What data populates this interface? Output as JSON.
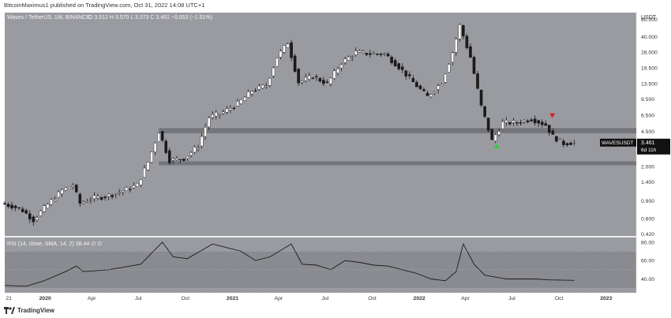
{
  "publisher_line": "BitcoinMaximus1 published on TradingView.com, Oct 31, 2022 14:08 UTC+1",
  "legend": {
    "symbol": "Waves / TetherUS, 1W, BINANCE",
    "ohlc": "O 3.512  H 3.570  L 3.373  C 3.461  −0.053 (−1.51%)"
  },
  "currency_label": "USDT",
  "price_axis": {
    "ticks": [
      "60.000",
      "40.000",
      "28.000",
      "19.500",
      "13.500",
      "9.500",
      "6.500",
      "4.500",
      "3.000",
      "2.000",
      "1.400",
      "0.900",
      "0.600",
      "0.420"
    ]
  },
  "rsi_axis": {
    "ticks": [
      "80.00",
      "60.00",
      "40.00"
    ]
  },
  "rsi_label": "RSI (14, close, SMA, 14, 2)  38.44  ∅  ∅",
  "last_price_tag": {
    "symbol": "WAVESUSDT",
    "price": "3.461",
    "countdown": "6d 11h"
  },
  "time_axis": {
    "ticks": [
      "21",
      "2020",
      "Apr",
      "Jul",
      "Oct",
      "2021",
      "Apr",
      "Jul",
      "Oct",
      "2022",
      "Apr",
      "Jul",
      "Oct",
      "2023"
    ]
  },
  "footer_brand": "TradingView",
  "colors": {
    "chart_bg": "#9a9ba0",
    "rsi_bg": "#9a9ba0",
    "support_zone": "#6f7075",
    "bull_candle": "#ffffff",
    "bear_candle": "#1a1a1a",
    "green_arrow": "#2ecc40",
    "red_arrow": "#d62020",
    "rsi_line": "#1a1a1a"
  },
  "chart_data": {
    "type": "candlestick",
    "title": "Waves / TetherUS, 1W, BINANCE",
    "scale": "log",
    "ylim": [
      0.4,
      70
    ],
    "x_range": [
      "2019-10-14",
      "2023-03-01"
    ],
    "support_zones": [
      [
        4.3,
        4.85
      ],
      [
        2.05,
        2.25
      ]
    ],
    "signals": [
      {
        "date": "2022-06-01",
        "type": "bullish",
        "price": 3.45
      },
      {
        "date": "2022-09-18",
        "type": "bearish",
        "price": 6.0
      }
    ],
    "price_path": [
      [
        "2019-10-14",
        0.85
      ],
      [
        "2019-11-04",
        0.8
      ],
      [
        "2019-11-25",
        0.72
      ],
      [
        "2019-12-16",
        0.58
      ],
      [
        "2019-12-30",
        0.7
      ],
      [
        "2020-01-20",
        0.9
      ],
      [
        "2020-02-10",
        1.15
      ],
      [
        "2020-03-02",
        1.3
      ],
      [
        "2020-03-16",
        0.85
      ],
      [
        "2020-04-06",
        0.95
      ],
      [
        "2020-05-04",
        1.0
      ],
      [
        "2020-06-01",
        1.1
      ],
      [
        "2020-07-06",
        1.3
      ],
      [
        "2020-07-27",
        2.2
      ],
      [
        "2020-08-17",
        4.5
      ],
      [
        "2020-09-07",
        2.3
      ],
      [
        "2020-10-05",
        2.4
      ],
      [
        "2020-11-02",
        3.2
      ],
      [
        "2020-11-23",
        6.2
      ],
      [
        "2020-12-21",
        7.0
      ],
      [
        "2021-01-18",
        8.5
      ],
      [
        "2021-02-15",
        11.5
      ],
      [
        "2021-03-15",
        13.0
      ],
      [
        "2021-04-05",
        25.0
      ],
      [
        "2021-04-26",
        35.0
      ],
      [
        "2021-05-17",
        14.0
      ],
      [
        "2021-06-14",
        16.0
      ],
      [
        "2021-07-12",
        13.5
      ],
      [
        "2021-08-09",
        22.0
      ],
      [
        "2021-09-06",
        28.0
      ],
      [
        "2021-10-04",
        27.0
      ],
      [
        "2021-11-01",
        27.0
      ],
      [
        "2021-11-29",
        20.0
      ],
      [
        "2021-12-27",
        14.0
      ],
      [
        "2022-01-24",
        10.0
      ],
      [
        "2022-02-21",
        14.0
      ],
      [
        "2022-03-14",
        28.0
      ],
      [
        "2022-03-28",
        52.0
      ],
      [
        "2022-04-18",
        25.0
      ],
      [
        "2022-05-09",
        8.0
      ],
      [
        "2022-05-30",
        3.6
      ],
      [
        "2022-06-20",
        5.5
      ],
      [
        "2022-07-18",
        5.5
      ],
      [
        "2022-08-15",
        6.0
      ],
      [
        "2022-09-12",
        5.2
      ],
      [
        "2022-09-26",
        4.0
      ],
      [
        "2022-10-17",
        3.4
      ],
      [
        "2022-10-31",
        3.46
      ]
    ],
    "rsi": {
      "label": "RSI (14, close, SMA, 14, 2)",
      "last": 38.44,
      "ylim": [
        25,
        85
      ],
      "band": [
        30,
        70
      ],
      "path": [
        [
          "2019-10-14",
          33
        ],
        [
          "2019-11-25",
          32
        ],
        [
          "2019-12-30",
          38
        ],
        [
          "2020-02-10",
          48
        ],
        [
          "2020-03-02",
          54
        ],
        [
          "2020-03-16",
          48
        ],
        [
          "2020-05-04",
          50
        ],
        [
          "2020-07-06",
          56
        ],
        [
          "2020-08-17",
          80
        ],
        [
          "2020-09-07",
          64
        ],
        [
          "2020-10-05",
          62
        ],
        [
          "2020-11-23",
          78
        ],
        [
          "2020-12-21",
          74
        ],
        [
          "2021-01-18",
          70
        ],
        [
          "2021-02-15",
          60
        ],
        [
          "2021-03-15",
          64
        ],
        [
          "2021-04-26",
          78
        ],
        [
          "2021-05-17",
          56
        ],
        [
          "2021-06-14",
          55
        ],
        [
          "2021-07-12",
          50
        ],
        [
          "2021-08-09",
          60
        ],
        [
          "2021-09-06",
          58
        ],
        [
          "2021-10-04",
          55
        ],
        [
          "2021-11-01",
          54
        ],
        [
          "2021-12-27",
          46
        ],
        [
          "2022-01-24",
          40
        ],
        [
          "2022-02-21",
          38
        ],
        [
          "2022-03-14",
          48
        ],
        [
          "2022-03-28",
          78
        ],
        [
          "2022-04-18",
          56
        ],
        [
          "2022-05-09",
          44
        ],
        [
          "2022-06-20",
          40
        ],
        [
          "2022-08-15",
          40
        ],
        [
          "2022-09-12",
          39
        ],
        [
          "2022-10-31",
          38.44
        ]
      ]
    }
  }
}
